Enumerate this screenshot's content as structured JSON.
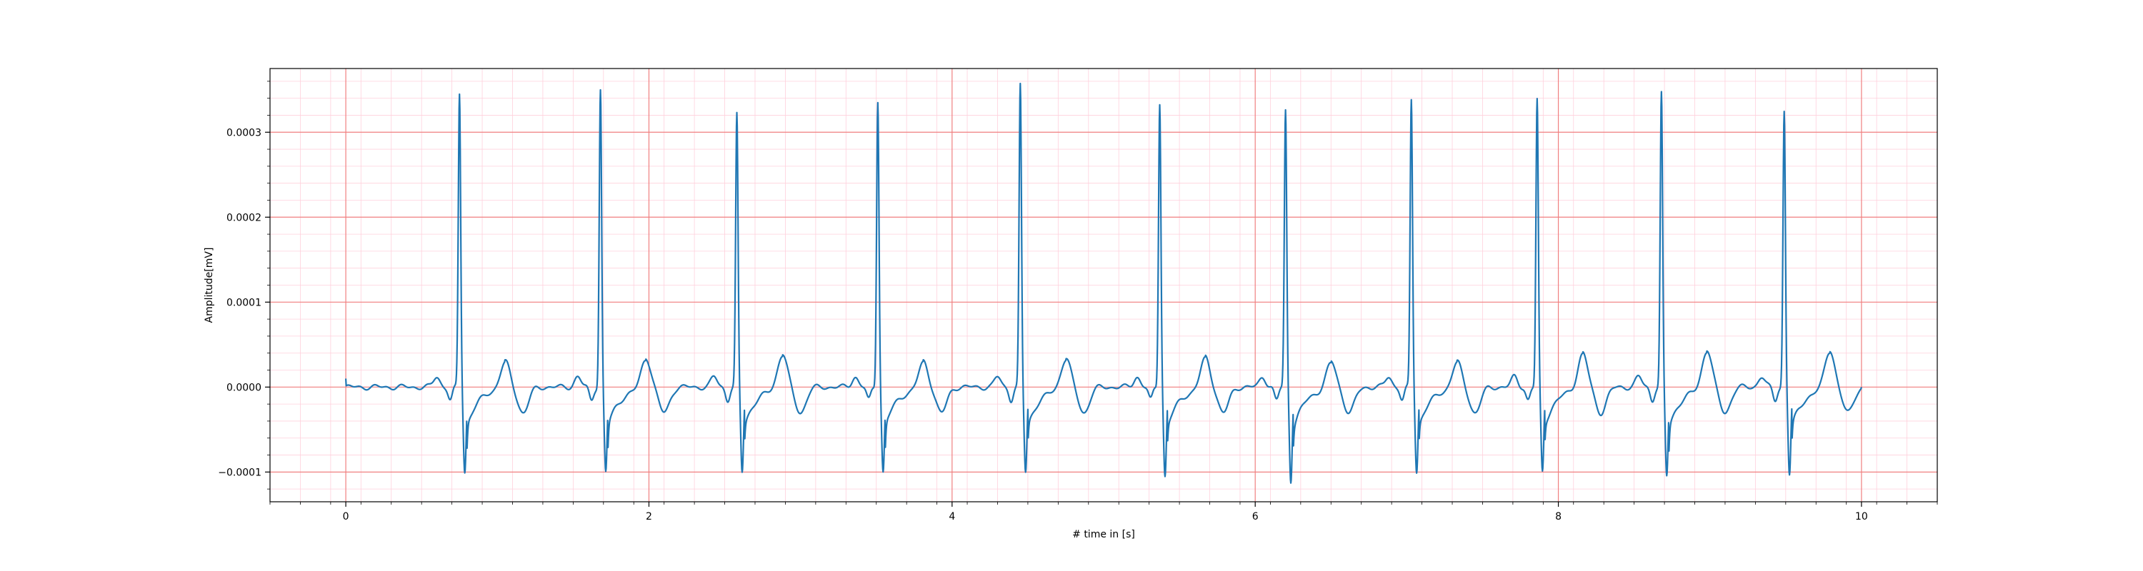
{
  "chart_data": {
    "type": "line",
    "title": "",
    "xlabel": "# time in [s]",
    "ylabel": "Amplitude[mV]",
    "xlim": [
      -0.5,
      10.5
    ],
    "ylim": [
      -0.000135,
      0.000375
    ],
    "x_ticks": [
      0,
      2,
      4,
      6,
      8,
      10
    ],
    "x_tick_labels": [
      "0",
      "2",
      "4",
      "6",
      "8",
      "10"
    ],
    "y_ticks": [
      -0.0001,
      0.0,
      0.0001,
      0.0002,
      0.0003
    ],
    "y_tick_labels": [
      "−0.0001",
      "0.0000",
      "0.0001",
      "0.0002",
      "0.0003"
    ],
    "grid": true,
    "grid_major_color": "#f08080",
    "grid_minor_color": "#ffd0dc",
    "line_color": "#1f77b4",
    "series": [
      {
        "name": "",
        "beats": [
          {
            "t": 0.75,
            "r": 0.000345,
            "s": -0.0001,
            "tw": 3e-05
          },
          {
            "t": 1.68,
            "r": 0.00035,
            "s": -0.0001,
            "tw": 3.5e-05
          },
          {
            "t": 2.58,
            "r": 0.00032,
            "s": -0.0001,
            "tw": 4e-05
          },
          {
            "t": 3.51,
            "r": 0.000338,
            "s": -0.0001,
            "tw": 3e-05
          },
          {
            "t": 4.45,
            "r": 0.000355,
            "s": -0.0001,
            "tw": 3.5e-05
          },
          {
            "t": 5.37,
            "r": 0.000335,
            "s": -0.000105,
            "tw": 3.5e-05
          },
          {
            "t": 6.2,
            "r": 0.000325,
            "s": -0.00011,
            "tw": 3e-05
          },
          {
            "t": 7.03,
            "r": 0.000338,
            "s": -0.0001,
            "tw": 3e-05
          },
          {
            "t": 7.86,
            "r": 0.000338,
            "s": -0.0001,
            "tw": 4e-05
          },
          {
            "t": 8.68,
            "r": 0.000345,
            "s": -0.000105,
            "tw": 4.5e-05
          },
          {
            "t": 9.49,
            "r": 0.000325,
            "s": -0.000103,
            "tw": 4.5e-05
          }
        ],
        "x_start": 0.0,
        "x_end": 10.0,
        "y_start": 1e-05,
        "y_end": 0.0
      }
    ]
  }
}
